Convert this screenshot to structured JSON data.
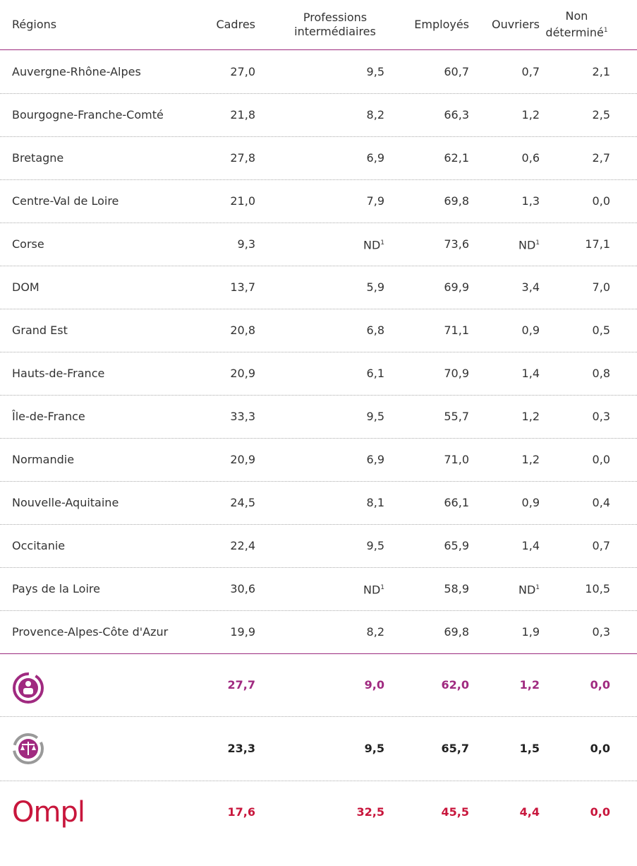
{
  "header": [
    "Régions",
    "Cadres",
    "Professions intermédiaires",
    "Employés",
    "Ouvriers",
    {
      "text": "Non déterminé",
      "sup": "1"
    }
  ],
  "rows": [
    [
      "Auvergne-Rhône-Alpes",
      "27,0",
      "9,5",
      "60,7",
      "0,7",
      "2,1"
    ],
    [
      "Bourgogne-Franche-Comté",
      "21,8",
      "8,2",
      "66,3",
      "1,2",
      "2,5"
    ],
    [
      "Bretagne",
      "27,8",
      "6,9",
      "62,1",
      "0,6",
      "2,7"
    ],
    [
      "Centre-Val de Loire",
      "21,0",
      "7,9",
      "69,8",
      "1,3",
      "0,0"
    ],
    [
      "Corse",
      "9,3",
      {
        "text": "ND",
        "sup": "1"
      },
      "73,6",
      {
        "text": "ND",
        "sup": "1"
      },
      "17,1"
    ],
    [
      "DOM",
      "13,7",
      "5,9",
      "69,9",
      "3,4",
      "7,0"
    ],
    [
      "Grand Est",
      "20,8",
      "6,8",
      "71,1",
      "0,9",
      "0,5"
    ],
    [
      "Hauts-de-France",
      "20,9",
      "6,1",
      "70,9",
      "1,4",
      "0,8"
    ],
    [
      "Île-de-France",
      "33,3",
      "9,5",
      "55,7",
      "1,2",
      "0,3"
    ],
    [
      "Normandie",
      "20,9",
      "6,9",
      "71,0",
      "1,2",
      "0,0"
    ],
    [
      "Nouvelle-Aquitaine",
      "24,5",
      "8,1",
      "66,1",
      "0,9",
      "0,4"
    ],
    [
      "Occitanie",
      "22,4",
      "9,5",
      "65,9",
      "1,4",
      "0,7"
    ],
    [
      "Pays de la Loire",
      "30,6",
      {
        "text": "ND",
        "sup": "1"
      },
      "58,9",
      {
        "text": "ND",
        "sup": "1"
      },
      "10,5"
    ],
    [
      "Provence-Alpes-Côte d'Azur",
      "19,9",
      "8,2",
      "69,8",
      "1,9",
      "0,3"
    ]
  ],
  "summary_rows": [
    {
      "values": [
        "27,7",
        "9,0",
        "62,0",
        "1,2",
        "0,0"
      ]
    },
    {
      "values": [
        "23,3",
        "9,5",
        "65,7",
        "1,5",
        "0,0"
      ]
    },
    {
      "label": "Ompl",
      "values": [
        "17,6",
        "32,5",
        "45,5",
        "4,4",
        "0,0"
      ]
    }
  ]
}
